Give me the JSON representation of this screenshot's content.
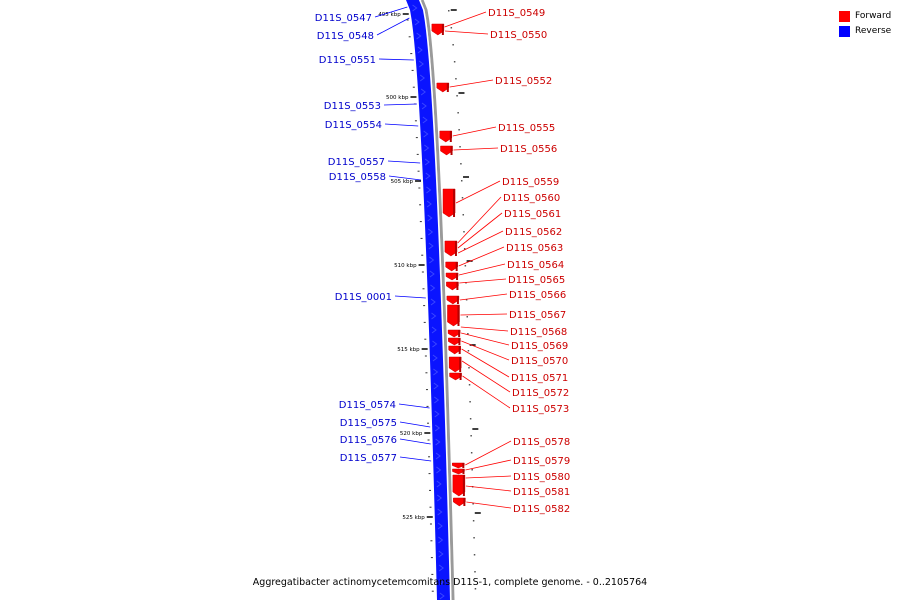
{
  "legend": {
    "forward_label": "Forward",
    "reverse_label": "Reverse",
    "forward_color": "#ff0000",
    "reverse_color": "#0000ff"
  },
  "caption": "Aggregatibacter actinomycetemcomitans D11S-1, complete genome. - 0..2105764",
  "scale": {
    "ticks": [
      "495 kbp",
      "500 kbp",
      "505 kbp",
      "510 kbp",
      "515 kbp",
      "520 kbp",
      "525 kbp"
    ]
  },
  "reverse_genes": [
    "D11S_0547",
    "D11S_0548",
    "D11S_0551",
    "D11S_0553",
    "D11S_0554",
    "D11S_0557",
    "D11S_0558",
    "D11S_0001",
    "D11S_0574",
    "D11S_0575",
    "D11S_0576",
    "D11S_0577"
  ],
  "forward_genes": [
    "D11S_0549",
    "D11S_0550",
    "D11S_0552",
    "D11S_0555",
    "D11S_0556",
    "D11S_0559",
    "D11S_0560",
    "D11S_0561",
    "D11S_0562",
    "D11S_0563",
    "D11S_0564",
    "D11S_0565",
    "D11S_0566",
    "D11S_0567",
    "D11S_0568",
    "D11S_0569",
    "D11S_0570",
    "D11S_0571",
    "D11S_0572",
    "D11S_0573",
    "D11S_0578",
    "D11S_0579",
    "D11S_0580",
    "D11S_0581",
    "D11S_0582"
  ]
}
